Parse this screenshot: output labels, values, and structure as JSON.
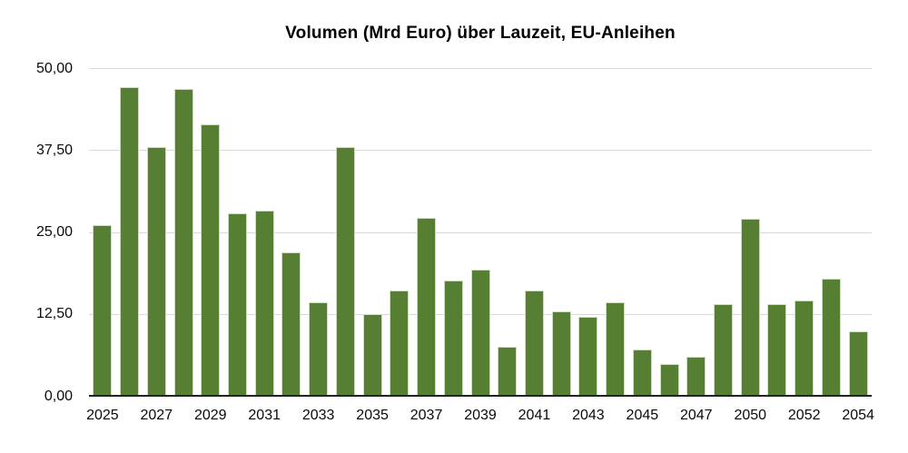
{
  "chart_data": {
    "type": "bar",
    "title": "Volumen (Mrd Euro) über Lauzeit, EU-Anleihen",
    "categories": [
      "2025",
      "2026",
      "2027",
      "2028",
      "2029",
      "2030",
      "2031",
      "2032",
      "2033",
      "2034",
      "2035",
      "2036",
      "2037",
      "2038",
      "2039",
      "2040",
      "2041",
      "2042",
      "2043",
      "2044",
      "2045",
      "2046",
      "2047",
      "2048",
      "2050",
      "2051",
      "2052",
      "2053",
      "2054"
    ],
    "values": [
      26.1,
      47.1,
      38.0,
      46.8,
      41.4,
      27.8,
      28.3,
      21.9,
      14.3,
      38.0,
      12.5,
      16.0,
      27.1,
      17.6,
      19.3,
      7.5,
      16.0,
      12.9,
      12.1,
      14.3,
      7.0,
      4.9,
      6.0,
      14.0,
      27.0,
      14.0,
      14.5,
      17.8,
      9.9
    ],
    "xlabel": "",
    "ylabel": "",
    "ylim": [
      0,
      50
    ],
    "y_tick_values": [
      0,
      12.5,
      25,
      37.5,
      50
    ],
    "y_tick_labels": [
      "0,00",
      "12,50",
      "25,00",
      "37,50",
      "50,00"
    ],
    "x_label_every": 2,
    "grid": "horizontal gridlines on",
    "legend": "none",
    "colors": {
      "bar_fill": "#567f33",
      "bar_stroke": "#cfdcc2",
      "gridline": "#d9d9d9",
      "axis_line": "#222222",
      "text": "#0a0a0a"
    }
  }
}
